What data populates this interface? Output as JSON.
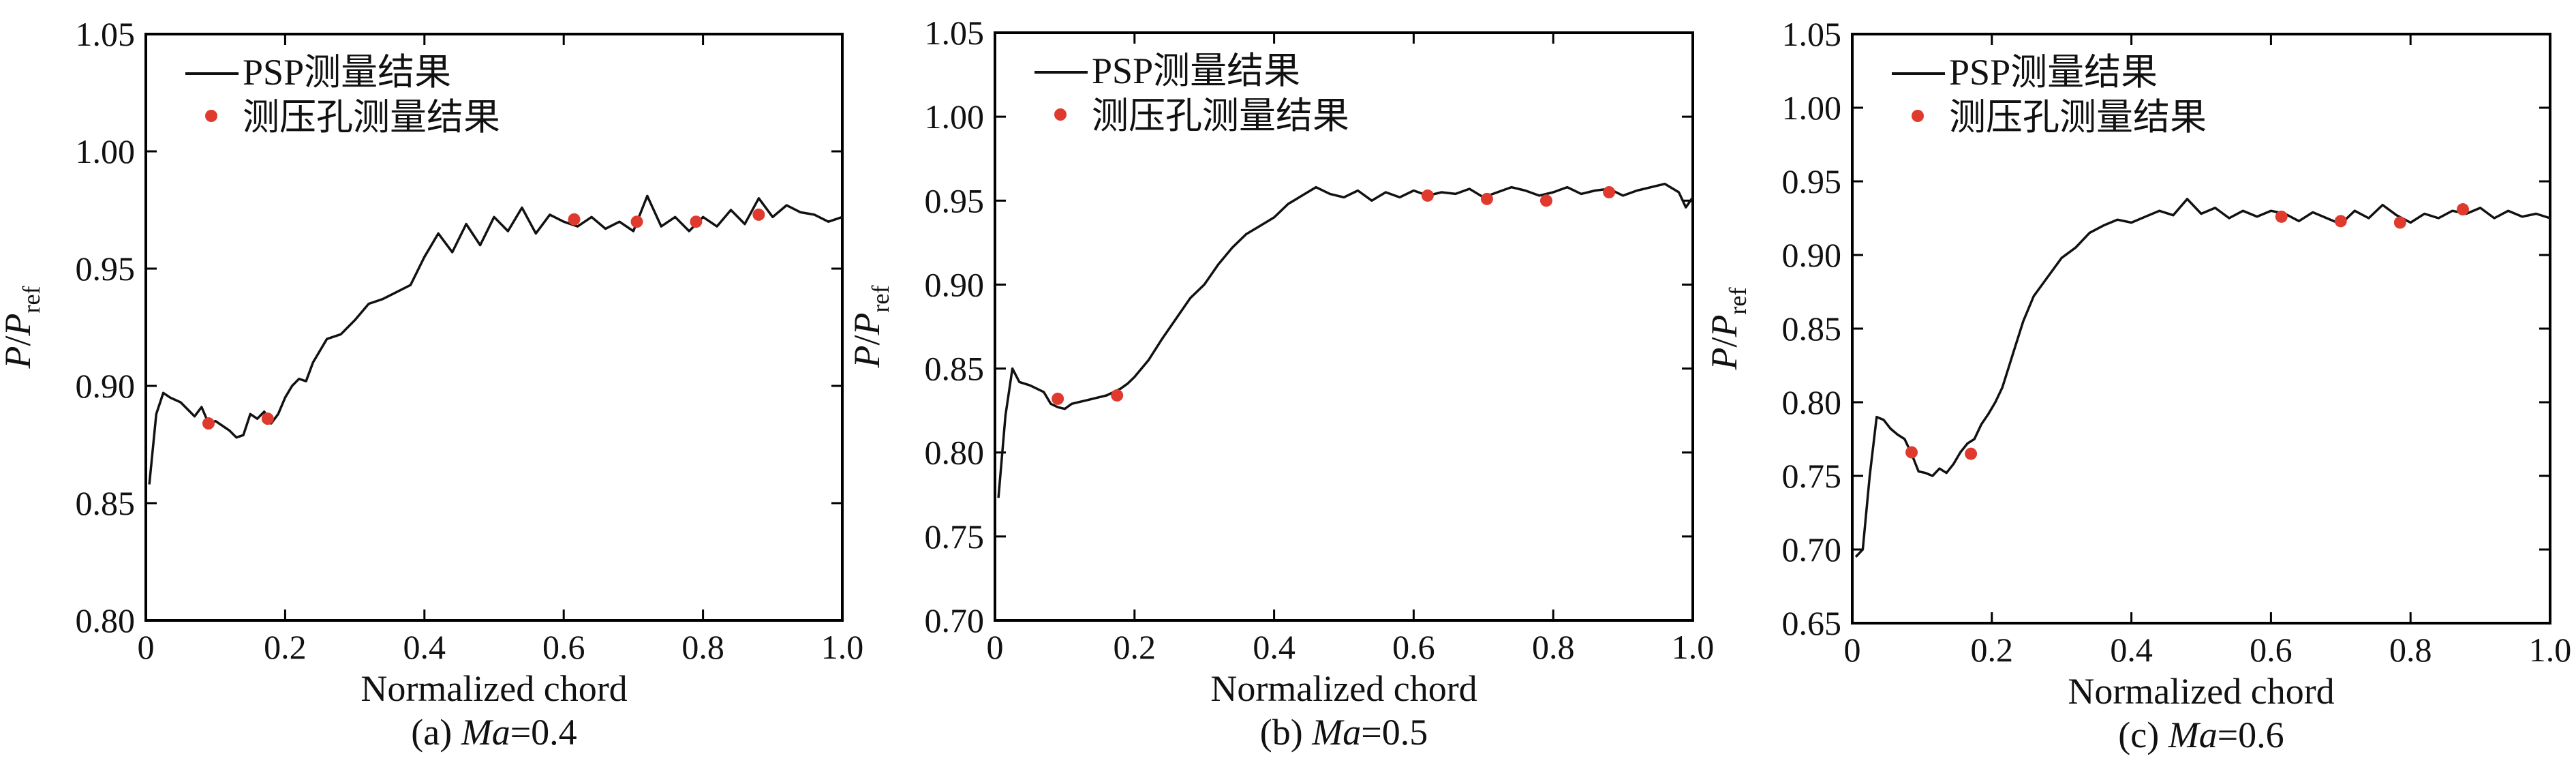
{
  "figure": {
    "colors": {
      "line": "#111111",
      "marker": "#e03a2f",
      "axis": "#000000"
    }
  },
  "chart_data": [
    {
      "type": "line",
      "panel_caption": {
        "prefix": "(a) ",
        "italic": "Ma",
        "suffix": "=0.4"
      },
      "xlabel": "Normalized chord",
      "ylabel": {
        "main": "P/P",
        "subscript": "ref"
      },
      "xlim": [
        0,
        1.0
      ],
      "ylim": [
        0.8,
        1.05
      ],
      "xticks": [
        "0",
        "0.2",
        "0.4",
        "0.6",
        "0.8",
        "1.0"
      ],
      "yticks": [
        "0.80",
        "0.85",
        "0.90",
        "0.95",
        "1.00",
        "1.05"
      ],
      "legend_position": "top-left",
      "series": [
        {
          "name": "PSP测量结果",
          "kind": "line",
          "x": [
            0.005,
            0.015,
            0.025,
            0.035,
            0.05,
            0.06,
            0.07,
            0.08,
            0.09,
            0.1,
            0.11,
            0.12,
            0.13,
            0.14,
            0.15,
            0.16,
            0.17,
            0.18,
            0.19,
            0.2,
            0.21,
            0.22,
            0.23,
            0.24,
            0.25,
            0.26,
            0.28,
            0.3,
            0.32,
            0.34,
            0.36,
            0.38,
            0.4,
            0.42,
            0.44,
            0.46,
            0.48,
            0.5,
            0.52,
            0.54,
            0.56,
            0.58,
            0.6,
            0.62,
            0.64,
            0.66,
            0.68,
            0.7,
            0.72,
            0.74,
            0.76,
            0.78,
            0.8,
            0.82,
            0.84,
            0.86,
            0.88,
            0.9,
            0.92,
            0.94,
            0.96,
            0.98,
            1.0
          ],
          "y": [
            0.858,
            0.888,
            0.897,
            0.895,
            0.893,
            0.89,
            0.887,
            0.891,
            0.884,
            0.885,
            0.883,
            0.881,
            0.878,
            0.879,
            0.888,
            0.886,
            0.889,
            0.884,
            0.888,
            0.895,
            0.9,
            0.903,
            0.902,
            0.91,
            0.915,
            0.92,
            0.922,
            0.928,
            0.935,
            0.937,
            0.94,
            0.943,
            0.955,
            0.965,
            0.957,
            0.969,
            0.96,
            0.972,
            0.966,
            0.976,
            0.965,
            0.973,
            0.97,
            0.968,
            0.972,
            0.967,
            0.97,
            0.966,
            0.981,
            0.968,
            0.972,
            0.966,
            0.972,
            0.968,
            0.975,
            0.969,
            0.98,
            0.972,
            0.977,
            0.974,
            0.973,
            0.97,
            0.972
          ]
        },
        {
          "name": "测压孔测量结果",
          "kind": "scatter",
          "x": [
            0.09,
            0.175,
            0.615,
            0.705,
            0.79,
            0.88
          ],
          "y": [
            0.884,
            0.886,
            0.971,
            0.97,
            0.97,
            0.973
          ]
        }
      ]
    },
    {
      "type": "line",
      "panel_caption": {
        "prefix": "(b) ",
        "italic": "Ma",
        "suffix": "=0.5"
      },
      "xlabel": "Normalized chord",
      "ylabel": {
        "main": "P/P",
        "subscript": "ref"
      },
      "xlim": [
        0,
        1.0
      ],
      "ylim": [
        0.7,
        1.05
      ],
      "xticks": [
        "0",
        "0.2",
        "0.4",
        "0.6",
        "0.8",
        "1.0"
      ],
      "yticks": [
        "0.70",
        "0.75",
        "0.80",
        "0.85",
        "0.90",
        "0.95",
        "1.00",
        "1.05"
      ],
      "legend_position": "top-left",
      "series": [
        {
          "name": "PSP测量结果",
          "kind": "line",
          "x": [
            0.005,
            0.015,
            0.025,
            0.035,
            0.05,
            0.06,
            0.07,
            0.08,
            0.09,
            0.1,
            0.11,
            0.12,
            0.13,
            0.14,
            0.15,
            0.16,
            0.17,
            0.18,
            0.19,
            0.2,
            0.22,
            0.24,
            0.26,
            0.28,
            0.3,
            0.32,
            0.34,
            0.36,
            0.38,
            0.4,
            0.42,
            0.44,
            0.46,
            0.48,
            0.5,
            0.52,
            0.54,
            0.56,
            0.58,
            0.6,
            0.62,
            0.64,
            0.66,
            0.68,
            0.7,
            0.72,
            0.74,
            0.76,
            0.78,
            0.8,
            0.82,
            0.84,
            0.86,
            0.88,
            0.9,
            0.92,
            0.94,
            0.96,
            0.98,
            0.99,
            1.0
          ],
          "y": [
            0.773,
            0.822,
            0.85,
            0.842,
            0.84,
            0.838,
            0.836,
            0.829,
            0.827,
            0.826,
            0.829,
            0.83,
            0.831,
            0.832,
            0.833,
            0.834,
            0.836,
            0.838,
            0.841,
            0.845,
            0.855,
            0.868,
            0.88,
            0.892,
            0.9,
            0.912,
            0.922,
            0.93,
            0.935,
            0.94,
            0.948,
            0.953,
            0.958,
            0.954,
            0.952,
            0.956,
            0.95,
            0.955,
            0.952,
            0.956,
            0.953,
            0.955,
            0.954,
            0.957,
            0.952,
            0.955,
            0.958,
            0.956,
            0.953,
            0.955,
            0.958,
            0.954,
            0.956,
            0.957,
            0.953,
            0.956,
            0.958,
            0.96,
            0.955,
            0.946,
            0.952
          ]
        },
        {
          "name": "测压孔测量结果",
          "kind": "scatter",
          "x": [
            0.09,
            0.175,
            0.62,
            0.705,
            0.79,
            0.88
          ],
          "y": [
            0.832,
            0.834,
            0.953,
            0.951,
            0.95,
            0.955
          ]
        }
      ]
    },
    {
      "type": "line",
      "panel_caption": {
        "prefix": "(c) ",
        "italic": "Ma",
        "suffix": "=0.6"
      },
      "xlabel": "Normalized chord",
      "ylabel": {
        "main": "P/P",
        "subscript": "ref"
      },
      "xlim": [
        0,
        1.0
      ],
      "ylim": [
        0.65,
        1.05
      ],
      "xticks": [
        "0",
        "0.2",
        "0.4",
        "0.6",
        "0.8",
        "1.0"
      ],
      "yticks": [
        "0.65",
        "0.70",
        "0.75",
        "0.80",
        "0.85",
        "0.90",
        "0.95",
        "1.00",
        "1.05"
      ],
      "legend_position": "top-left",
      "series": [
        {
          "name": "PSP测量结果",
          "kind": "line",
          "x": [
            0.005,
            0.015,
            0.025,
            0.035,
            0.045,
            0.055,
            0.065,
            0.075,
            0.085,
            0.095,
            0.105,
            0.115,
            0.125,
            0.135,
            0.145,
            0.155,
            0.165,
            0.175,
            0.185,
            0.195,
            0.205,
            0.215,
            0.225,
            0.235,
            0.245,
            0.26,
            0.28,
            0.3,
            0.32,
            0.34,
            0.36,
            0.38,
            0.4,
            0.42,
            0.44,
            0.46,
            0.48,
            0.5,
            0.52,
            0.54,
            0.56,
            0.58,
            0.6,
            0.62,
            0.64,
            0.66,
            0.68,
            0.7,
            0.72,
            0.74,
            0.76,
            0.78,
            0.8,
            0.82,
            0.84,
            0.86,
            0.88,
            0.9,
            0.92,
            0.94,
            0.96,
            0.98,
            1.0
          ],
          "y": [
            0.695,
            0.7,
            0.75,
            0.79,
            0.788,
            0.782,
            0.778,
            0.775,
            0.765,
            0.753,
            0.752,
            0.75,
            0.755,
            0.752,
            0.758,
            0.766,
            0.772,
            0.775,
            0.785,
            0.792,
            0.8,
            0.81,
            0.825,
            0.84,
            0.855,
            0.872,
            0.885,
            0.898,
            0.905,
            0.915,
            0.92,
            0.924,
            0.922,
            0.926,
            0.93,
            0.927,
            0.938,
            0.928,
            0.932,
            0.925,
            0.93,
            0.926,
            0.93,
            0.928,
            0.923,
            0.929,
            0.925,
            0.921,
            0.93,
            0.925,
            0.934,
            0.927,
            0.922,
            0.928,
            0.925,
            0.93,
            0.928,
            0.932,
            0.925,
            0.93,
            0.926,
            0.928,
            0.925
          ]
        },
        {
          "name": "测压孔测量结果",
          "kind": "scatter",
          "x": [
            0.085,
            0.17,
            0.615,
            0.7,
            0.785,
            0.875
          ],
          "y": [
            0.766,
            0.765,
            0.926,
            0.923,
            0.922,
            0.931
          ]
        }
      ]
    }
  ]
}
